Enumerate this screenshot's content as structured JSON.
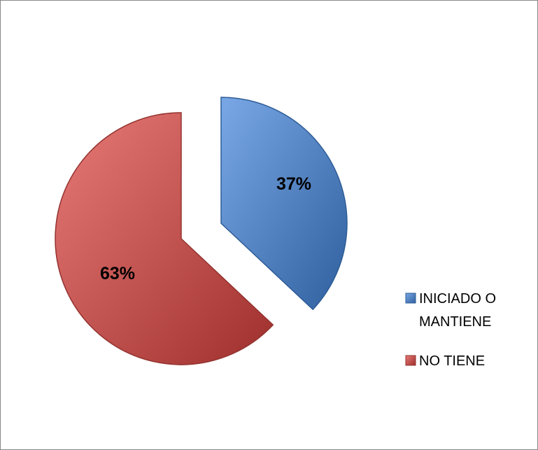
{
  "chart_data": {
    "type": "pie",
    "categories": [
      "INICIADO O MANTIENE",
      "NO TIENE"
    ],
    "values": [
      37,
      63
    ],
    "data_labels": [
      "37%",
      "63%"
    ],
    "colors": [
      "#4A7EBB",
      "#BE4B48"
    ],
    "exploded": true,
    "legend_position": "right",
    "legend": [
      {
        "lines": [
          "INICIADO O",
          "MANTIENE"
        ],
        "color": "#4A7EBB"
      },
      {
        "lines": [
          "NO TIENE"
        ],
        "color": "#BE4B48"
      }
    ]
  }
}
